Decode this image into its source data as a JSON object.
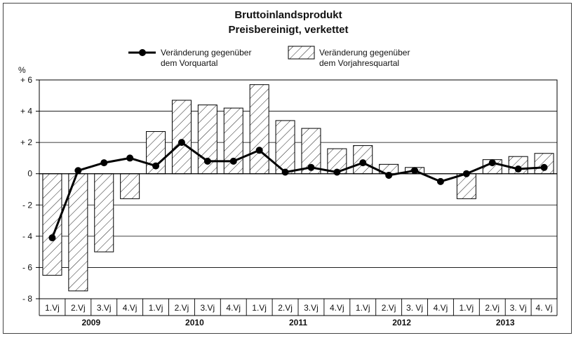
{
  "chart_data": {
    "type": "bar",
    "title": "Bruttoinlandsprodukt",
    "subtitle": "Preisbereinigt, verkettet",
    "ylabel": "%",
    "ylim": [
      -8,
      6
    ],
    "yticks": [
      6,
      4,
      2,
      0,
      -2,
      -4,
      -6,
      -8
    ],
    "ytick_labels": [
      "+ 6",
      "+ 4",
      "+ 2",
      "0",
      "- 2",
      "- 4",
      "- 6",
      "- 8"
    ],
    "grid": true,
    "legend_position": "top-center",
    "categories": [
      "1.Vj",
      "2.Vj",
      "3.Vj",
      "4.Vj",
      "1.Vj",
      "2.Vj",
      "3.Vj",
      "4.Vj",
      "1.Vj",
      "2.Vj",
      "3.Vj",
      "4.Vj",
      "1.Vj",
      "2.Vj",
      "3. Vj",
      "4.Vj",
      "1.Vj",
      "2.Vj",
      "3. Vj",
      "4. Vj"
    ],
    "years": [
      {
        "label": "2009",
        "quarters": 4
      },
      {
        "label": "2010",
        "quarters": 4
      },
      {
        "label": "2011",
        "quarters": 4
      },
      {
        "label": "2012",
        "quarters": 4
      },
      {
        "label": "2013",
        "quarters": 4
      }
    ],
    "series": [
      {
        "name": "Veränderung gegenüber dem Vorquartal",
        "legend_lines": [
          "Veränderung gegenüber",
          "dem Vorquartal"
        ],
        "kind": "line",
        "values": [
          -4.1,
          0.2,
          0.7,
          1.0,
          0.5,
          2.0,
          0.8,
          0.8,
          1.5,
          0.1,
          0.4,
          0.1,
          0.7,
          -0.1,
          0.2,
          -0.5,
          0.0,
          0.7,
          0.3,
          0.4
        ]
      },
      {
        "name": "Veränderung gegenüber dem Vorjahresquartal",
        "legend_lines": [
          "Veränderung gegenüber",
          "dem Vorjahresquartal"
        ],
        "kind": "bar",
        "pattern": "diagonal-hatch",
        "values": [
          -6.5,
          -7.5,
          -5.0,
          -1.6,
          2.7,
          4.7,
          4.4,
          4.2,
          5.7,
          3.4,
          2.9,
          1.6,
          1.8,
          0.6,
          0.4,
          0.0,
          -1.6,
          0.9,
          1.1,
          1.3
        ]
      }
    ]
  }
}
